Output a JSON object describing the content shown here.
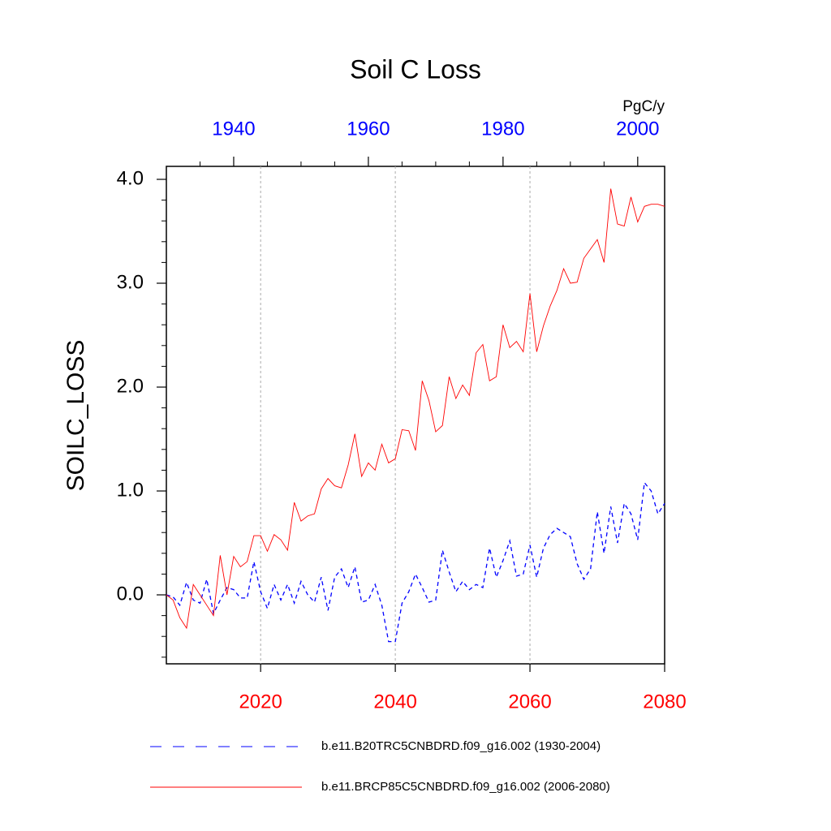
{
  "chart_data": {
    "type": "line",
    "title": "Soil C Loss",
    "units": "PgC/y",
    "ylabel": "SOILC_LOSS",
    "xlim": [
      2006,
      2080
    ],
    "xticks": [
      2020,
      2040,
      2060,
      2080
    ],
    "xtick_color": "#ff0000",
    "x2lim": [
      1930,
      2004
    ],
    "x2ticks": [
      1940,
      1960,
      1980,
      2000
    ],
    "x2tick_color": "#0000ff",
    "x2minorticks": [
      1935,
      1945,
      1950,
      1955,
      1965,
      1970,
      1975,
      1985,
      1990,
      1995
    ],
    "ylim": [
      -0.664,
      4.125
    ],
    "yticks": [
      {
        "value": 0,
        "label": "0.0"
      },
      {
        "value": 1,
        "label": "1.0"
      },
      {
        "value": 2,
        "label": "2.0"
      },
      {
        "value": 3,
        "label": "3.0"
      },
      {
        "value": 4,
        "label": "4.0"
      }
    ],
    "yminorticks": [
      -0.6,
      -0.4,
      -0.2,
      0.2,
      0.4,
      0.6,
      0.8,
      1.2,
      1.4,
      1.6,
      1.8,
      2.2,
      2.4,
      2.6,
      2.8,
      3.2,
      3.4,
      3.6,
      3.8
    ],
    "grid": true,
    "series": [
      {
        "name": "b.e11.B20TRC5CNBDRD.f09_g16.002 (1930-2004)",
        "color": "#0000ff",
        "dashed": true,
        "axis": "x2",
        "x": [
          1930,
          1931,
          1932,
          1933,
          1934,
          1935,
          1936,
          1937,
          1938,
          1939,
          1940,
          1941,
          1942,
          1943,
          1944,
          1945,
          1946,
          1947,
          1948,
          1949,
          1950,
          1951,
          1952,
          1953,
          1954,
          1955,
          1956,
          1957,
          1958,
          1959,
          1960,
          1961,
          1962,
          1963,
          1964,
          1965,
          1966,
          1967,
          1968,
          1969,
          1970,
          1971,
          1972,
          1973,
          1974,
          1975,
          1976,
          1977,
          1978,
          1979,
          1980,
          1981,
          1982,
          1983,
          1984,
          1985,
          1986,
          1987,
          1988,
          1989,
          1990,
          1991,
          1992,
          1993,
          1994,
          1995,
          1996,
          1997,
          1998,
          1999,
          2000,
          2001,
          2002,
          2003,
          2004
        ],
        "values": [
          0.0,
          -0.02,
          -0.1,
          0.12,
          -0.05,
          -0.08,
          0.15,
          -0.18,
          -0.05,
          0.07,
          0.05,
          -0.03,
          -0.03,
          0.32,
          0.03,
          -0.13,
          0.1,
          -0.05,
          0.1,
          -0.08,
          0.13,
          0.0,
          -0.07,
          0.17,
          -0.15,
          0.17,
          0.25,
          0.07,
          0.27,
          -0.07,
          -0.05,
          0.1,
          -0.1,
          -0.45,
          -0.45,
          -0.08,
          0.03,
          0.2,
          0.07,
          -0.07,
          -0.05,
          0.43,
          0.22,
          0.03,
          0.13,
          0.05,
          0.1,
          0.07,
          0.45,
          0.17,
          0.33,
          0.52,
          0.18,
          0.2,
          0.48,
          0.17,
          0.45,
          0.58,
          0.64,
          0.6,
          0.56,
          0.3,
          0.15,
          0.25,
          0.8,
          0.4,
          0.85,
          0.5,
          0.88,
          0.78,
          0.53,
          1.08,
          1.0,
          0.78,
          0.88
        ]
      },
      {
        "name": "b.e11.BRCP85C5CNBDRD.f09_g16.002 (2006-2080)",
        "color": "#ff0000",
        "dashed": false,
        "axis": "x",
        "x": [
          2006,
          2007,
          2008,
          2009,
          2010,
          2011,
          2012,
          2013,
          2014,
          2015,
          2016,
          2017,
          2018,
          2019,
          2020,
          2021,
          2022,
          2023,
          2024,
          2025,
          2026,
          2027,
          2028,
          2029,
          2030,
          2031,
          2032,
          2033,
          2034,
          2035,
          2036,
          2037,
          2038,
          2039,
          2040,
          2041,
          2042,
          2043,
          2044,
          2045,
          2046,
          2047,
          2048,
          2049,
          2050,
          2051,
          2052,
          2053,
          2054,
          2055,
          2056,
          2057,
          2058,
          2059,
          2060,
          2061,
          2062,
          2063,
          2064,
          2065,
          2066,
          2067,
          2068,
          2069,
          2070,
          2071,
          2072,
          2073,
          2074,
          2075,
          2076,
          2077,
          2078,
          2079,
          2080
        ],
        "values": [
          0.0,
          -0.05,
          -0.22,
          -0.32,
          0.1,
          0.0,
          -0.1,
          -0.2,
          0.38,
          0.0,
          0.37,
          0.27,
          0.32,
          0.57,
          0.57,
          0.42,
          0.58,
          0.53,
          0.43,
          0.89,
          0.71,
          0.76,
          0.78,
          1.02,
          1.12,
          1.05,
          1.03,
          1.25,
          1.55,
          1.14,
          1.27,
          1.2,
          1.45,
          1.27,
          1.31,
          1.59,
          1.58,
          1.39,
          2.06,
          1.87,
          1.57,
          1.63,
          2.1,
          1.89,
          2.02,
          1.92,
          2.33,
          2.41,
          2.06,
          2.1,
          2.6,
          2.38,
          2.44,
          2.34,
          2.9,
          2.34,
          2.59,
          2.78,
          2.93,
          3.14,
          3.0,
          3.01,
          3.24,
          3.33,
          3.42,
          3.2,
          3.91,
          3.57,
          3.55,
          3.83,
          3.59,
          3.74,
          3.76,
          3.76,
          3.74
        ]
      }
    ]
  }
}
